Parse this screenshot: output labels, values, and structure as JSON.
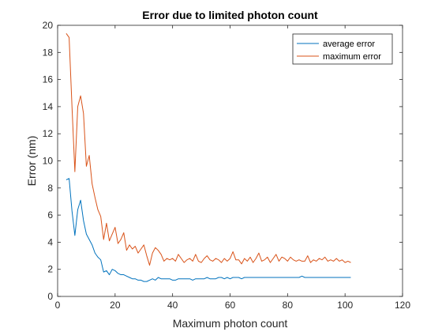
{
  "chart_data": {
    "type": "line",
    "title": "Error due to limited photon count",
    "xlabel": "Maximum photon count",
    "ylabel": "Error (nm)",
    "xlim": [
      0,
      120
    ],
    "ylim": [
      0,
      20
    ],
    "xticks": [
      0,
      20,
      40,
      60,
      80,
      100,
      120
    ],
    "yticks": [
      0,
      2,
      4,
      6,
      8,
      10,
      12,
      14,
      16,
      18,
      20
    ],
    "grid": false,
    "legend_position": "top-right",
    "colors": {
      "average": "#0072BD",
      "maximum": "#D95319"
    },
    "series": [
      {
        "name": "average error",
        "x": [
          3,
          4,
          5,
          6,
          7,
          8,
          9,
          10,
          11,
          12,
          13,
          14,
          15,
          16,
          17,
          18,
          19,
          20,
          21,
          22,
          23,
          24,
          25,
          26,
          27,
          28,
          29,
          30,
          31,
          32,
          33,
          34,
          35,
          36,
          37,
          38,
          39,
          40,
          41,
          42,
          43,
          44,
          45,
          46,
          47,
          48,
          49,
          50,
          51,
          52,
          53,
          54,
          55,
          56,
          57,
          58,
          59,
          60,
          61,
          62,
          63,
          64,
          65,
          66,
          67,
          68,
          69,
          70,
          71,
          72,
          73,
          74,
          75,
          76,
          77,
          78,
          79,
          80,
          81,
          82,
          83,
          84,
          85,
          86,
          87,
          88,
          89,
          90,
          91,
          92,
          93,
          94,
          95,
          96,
          97,
          98,
          99,
          100,
          101,
          102
        ],
        "y": [
          8.6,
          8.7,
          6.3,
          4.5,
          6.4,
          7.1,
          5.6,
          4.6,
          4.2,
          3.8,
          3.2,
          2.9,
          2.7,
          1.8,
          1.9,
          1.6,
          2.0,
          1.9,
          1.7,
          1.6,
          1.6,
          1.5,
          1.4,
          1.3,
          1.3,
          1.2,
          1.2,
          1.1,
          1.1,
          1.2,
          1.3,
          1.2,
          1.4,
          1.3,
          1.3,
          1.3,
          1.3,
          1.2,
          1.2,
          1.3,
          1.3,
          1.3,
          1.3,
          1.3,
          1.2,
          1.3,
          1.3,
          1.3,
          1.3,
          1.4,
          1.3,
          1.3,
          1.3,
          1.4,
          1.4,
          1.3,
          1.4,
          1.3,
          1.4,
          1.4,
          1.4,
          1.3,
          1.4,
          1.4,
          1.4,
          1.4,
          1.4,
          1.4,
          1.4,
          1.4,
          1.4,
          1.4,
          1.4,
          1.4,
          1.4,
          1.4,
          1.4,
          1.4,
          1.4,
          1.4,
          1.4,
          1.4,
          1.5,
          1.4,
          1.4,
          1.4,
          1.4,
          1.4,
          1.4,
          1.4,
          1.4,
          1.4,
          1.4,
          1.4,
          1.4,
          1.4,
          1.4,
          1.4,
          1.4,
          1.4
        ]
      },
      {
        "name": "maximum error",
        "x": [
          3,
          4,
          5,
          6,
          7,
          8,
          9,
          10,
          11,
          12,
          13,
          14,
          15,
          16,
          17,
          18,
          19,
          20,
          21,
          22,
          23,
          24,
          25,
          26,
          27,
          28,
          29,
          30,
          31,
          32,
          33,
          34,
          35,
          36,
          37,
          38,
          39,
          40,
          41,
          42,
          43,
          44,
          45,
          46,
          47,
          48,
          49,
          50,
          51,
          52,
          53,
          54,
          55,
          56,
          57,
          58,
          59,
          60,
          61,
          62,
          63,
          64,
          65,
          66,
          67,
          68,
          69,
          70,
          71,
          72,
          73,
          74,
          75,
          76,
          77,
          78,
          79,
          80,
          81,
          82,
          83,
          84,
          85,
          86,
          87,
          88,
          89,
          90,
          91,
          92,
          93,
          94,
          95,
          96,
          97,
          98,
          99,
          100,
          101,
          102
        ],
        "y": [
          19.4,
          19.1,
          14.0,
          9.2,
          14.0,
          14.8,
          13.5,
          9.6,
          10.4,
          8.3,
          7.3,
          6.4,
          5.9,
          4.2,
          5.4,
          4.1,
          4.6,
          5.1,
          3.9,
          4.2,
          4.7,
          3.4,
          3.8,
          3.5,
          3.7,
          3.2,
          3.5,
          3.8,
          3.0,
          2.3,
          3.2,
          3.6,
          3.4,
          3.1,
          2.6,
          2.8,
          2.7,
          2.8,
          2.6,
          3.1,
          2.8,
          2.5,
          2.7,
          2.8,
          2.6,
          3.1,
          2.6,
          2.5,
          2.8,
          3.0,
          2.7,
          2.6,
          2.8,
          2.7,
          2.5,
          2.8,
          2.6,
          2.8,
          3.3,
          2.7,
          2.7,
          2.4,
          2.8,
          2.6,
          2.9,
          2.5,
          2.8,
          3.2,
          2.6,
          2.7,
          2.9,
          2.5,
          2.8,
          3.1,
          2.6,
          2.9,
          2.8,
          2.6,
          2.9,
          2.7,
          2.6,
          2.7,
          2.6,
          2.6,
          3.0,
          2.5,
          2.7,
          2.6,
          2.8,
          2.7,
          2.9,
          2.6,
          2.7,
          2.6,
          2.8,
          2.6,
          2.7,
          2.5,
          2.6,
          2.5
        ]
      }
    ]
  }
}
